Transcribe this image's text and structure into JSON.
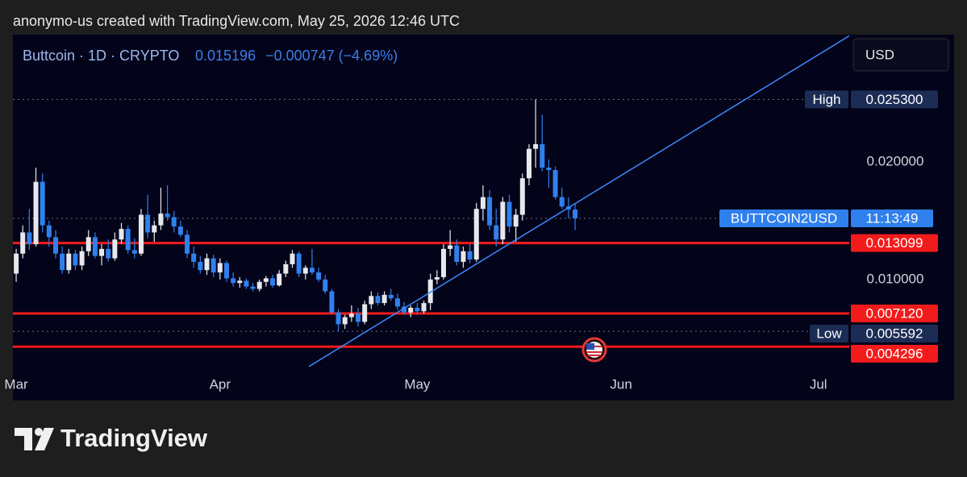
{
  "header": {
    "credit": "anonymo-us created with TradingView.com, May 25, 2026 12:46 UTC",
    "currency": "USD"
  },
  "chart_data": {
    "type": "candlestick",
    "title": "Buttcoin · 1D · CRYPTO",
    "last_price": 0.015196,
    "change": "−0.000747 (−4.69%)",
    "series": [
      {
        "up_color": "#e6e8ee",
        "down_color": "#2f80ed",
        "open": [
          0.0105,
          0.0122,
          0.014,
          0.013,
          0.0183,
          0.0146,
          0.0136,
          0.0122,
          0.0108,
          0.0122,
          0.0112,
          0.0124,
          0.0136,
          0.012,
          0.0126,
          0.0118,
          0.0134,
          0.0143,
          0.0125,
          0.0122,
          0.0155,
          0.014,
          0.0146,
          0.0156,
          0.0153,
          0.0145,
          0.0138,
          0.0122,
          0.0115,
          0.0108,
          0.0118,
          0.0106,
          0.0114,
          0.0101,
          0.0097,
          0.0099,
          0.0094,
          0.0092,
          0.0098,
          0.0101,
          0.0095,
          0.0105,
          0.0113,
          0.0122,
          0.0105,
          0.011,
          0.0106,
          0.01,
          0.009,
          0.0072,
          0.0062,
          0.0068,
          0.0071,
          0.0064,
          0.0079,
          0.0086,
          0.008,
          0.0087,
          0.0084,
          0.0077,
          0.0072,
          0.0076,
          0.0073,
          0.008,
          0.01,
          0.0102,
          0.0126,
          0.0129,
          0.0115,
          0.0124,
          0.0117,
          0.016,
          0.017,
          0.0146,
          0.0134,
          0.0166,
          0.0145,
          0.0155,
          0.0186,
          0.0211,
          0.0215,
          0.0195,
          0.0193,
          0.017,
          0.0162,
          0.015943
        ],
        "high": [
          0.0126,
          0.0146,
          0.016,
          0.0195,
          0.019,
          0.015,
          0.0142,
          0.0128,
          0.0126,
          0.0125,
          0.0128,
          0.0142,
          0.014,
          0.013,
          0.0134,
          0.014,
          0.0148,
          0.0146,
          0.0135,
          0.016,
          0.0172,
          0.015,
          0.0178,
          0.018,
          0.0158,
          0.015,
          0.0142,
          0.0128,
          0.012,
          0.0122,
          0.0121,
          0.0118,
          0.0116,
          0.0106,
          0.0102,
          0.0101,
          0.0097,
          0.01,
          0.0103,
          0.0104,
          0.0108,
          0.0116,
          0.0125,
          0.0124,
          0.0112,
          0.0126,
          0.011,
          0.0104,
          0.0092,
          0.0075,
          0.007,
          0.0078,
          0.0076,
          0.0082,
          0.009,
          0.0089,
          0.009,
          0.0092,
          0.0088,
          0.0081,
          0.0078,
          0.008,
          0.0082,
          0.0105,
          0.0108,
          0.013,
          0.0142,
          0.0134,
          0.0128,
          0.013,
          0.0165,
          0.018,
          0.0176,
          0.016,
          0.017,
          0.0172,
          0.016,
          0.019,
          0.0215,
          0.0253,
          0.024,
          0.0202,
          0.0196,
          0.0178,
          0.017,
          0.0164
        ],
        "low": [
          0.0098,
          0.0118,
          0.0125,
          0.0128,
          0.014,
          0.0128,
          0.0118,
          0.0105,
          0.0105,
          0.0108,
          0.0108,
          0.012,
          0.0118,
          0.0112,
          0.0115,
          0.0116,
          0.013,
          0.0122,
          0.0118,
          0.012,
          0.0135,
          0.0132,
          0.0142,
          0.015,
          0.014,
          0.0136,
          0.0118,
          0.011,
          0.0105,
          0.0104,
          0.0102,
          0.01,
          0.0098,
          0.0094,
          0.0093,
          0.0092,
          0.009,
          0.009,
          0.0094,
          0.0093,
          0.0094,
          0.0102,
          0.011,
          0.0102,
          0.01,
          0.0104,
          0.0098,
          0.0088,
          0.007,
          0.005592,
          0.0058,
          0.0064,
          0.006,
          0.0062,
          0.0075,
          0.0078,
          0.0078,
          0.0082,
          0.0074,
          0.007,
          0.0068,
          0.007,
          0.0071,
          0.0074,
          0.0096,
          0.01,
          0.012,
          0.0112,
          0.011,
          0.0114,
          0.0115,
          0.015,
          0.0142,
          0.0128,
          0.013,
          0.014,
          0.0132,
          0.015,
          0.018,
          0.0195,
          0.0192,
          0.0178,
          0.0168,
          0.016,
          0.0152,
          0.0142
        ],
        "close": [
          0.0122,
          0.014,
          0.013,
          0.0183,
          0.0146,
          0.0136,
          0.0122,
          0.0108,
          0.0122,
          0.0112,
          0.0124,
          0.0136,
          0.012,
          0.0126,
          0.0118,
          0.0134,
          0.0143,
          0.0125,
          0.0122,
          0.0155,
          0.014,
          0.0146,
          0.0156,
          0.0153,
          0.0145,
          0.0138,
          0.0122,
          0.0115,
          0.0108,
          0.0118,
          0.0106,
          0.0114,
          0.0101,
          0.0097,
          0.0099,
          0.0094,
          0.0092,
          0.0098,
          0.0101,
          0.0095,
          0.0105,
          0.0113,
          0.0122,
          0.0105,
          0.011,
          0.0106,
          0.01,
          0.009,
          0.0072,
          0.0062,
          0.0068,
          0.0071,
          0.0064,
          0.0079,
          0.0086,
          0.008,
          0.0087,
          0.0084,
          0.0077,
          0.0072,
          0.0076,
          0.0073,
          0.008,
          0.01,
          0.0102,
          0.0126,
          0.0129,
          0.0115,
          0.0124,
          0.0117,
          0.016,
          0.017,
          0.0146,
          0.0134,
          0.0166,
          0.0145,
          0.0155,
          0.0186,
          0.0211,
          0.0215,
          0.0195,
          0.0193,
          0.017,
          0.0162,
          0.015943,
          0.015196
        ]
      }
    ],
    "xlim": [
      -0.5,
      126.7
    ],
    "xticks": [
      {
        "value": 0,
        "label": "Mar"
      },
      {
        "value": 31,
        "label": "Apr"
      },
      {
        "value": 61,
        "label": "May"
      },
      {
        "value": 92,
        "label": "Jun"
      },
      {
        "value": 122,
        "label": "Jul"
      }
    ],
    "ylim": [
      0.0026,
      0.0308
    ],
    "yticks": [
      {
        "value": 0.01,
        "label": "0.010000"
      },
      {
        "value": 0.02,
        "label": "0.020000"
      }
    ],
    "levels": {
      "color": "#f21b1b",
      "values": [
        0.013099,
        {
          "value": 0.00712,
          "label": "0.007120"
        },
        0.004296
      ]
    },
    "high_label": "High",
    "high": {
      "value": 0.0253,
      "label": "0.025300"
    },
    "low_label": "Low",
    "low": 0.005592,
    "symbol_label": "BUTTCOIN2USD",
    "countdown": "11:13:49",
    "trendline": {
      "color": "#3d8bfd",
      "x": [
        44.5,
        126.7
      ],
      "values": [
        0.0026,
        0.0307
      ]
    }
  },
  "footer": {
    "brand": "TradingView"
  }
}
